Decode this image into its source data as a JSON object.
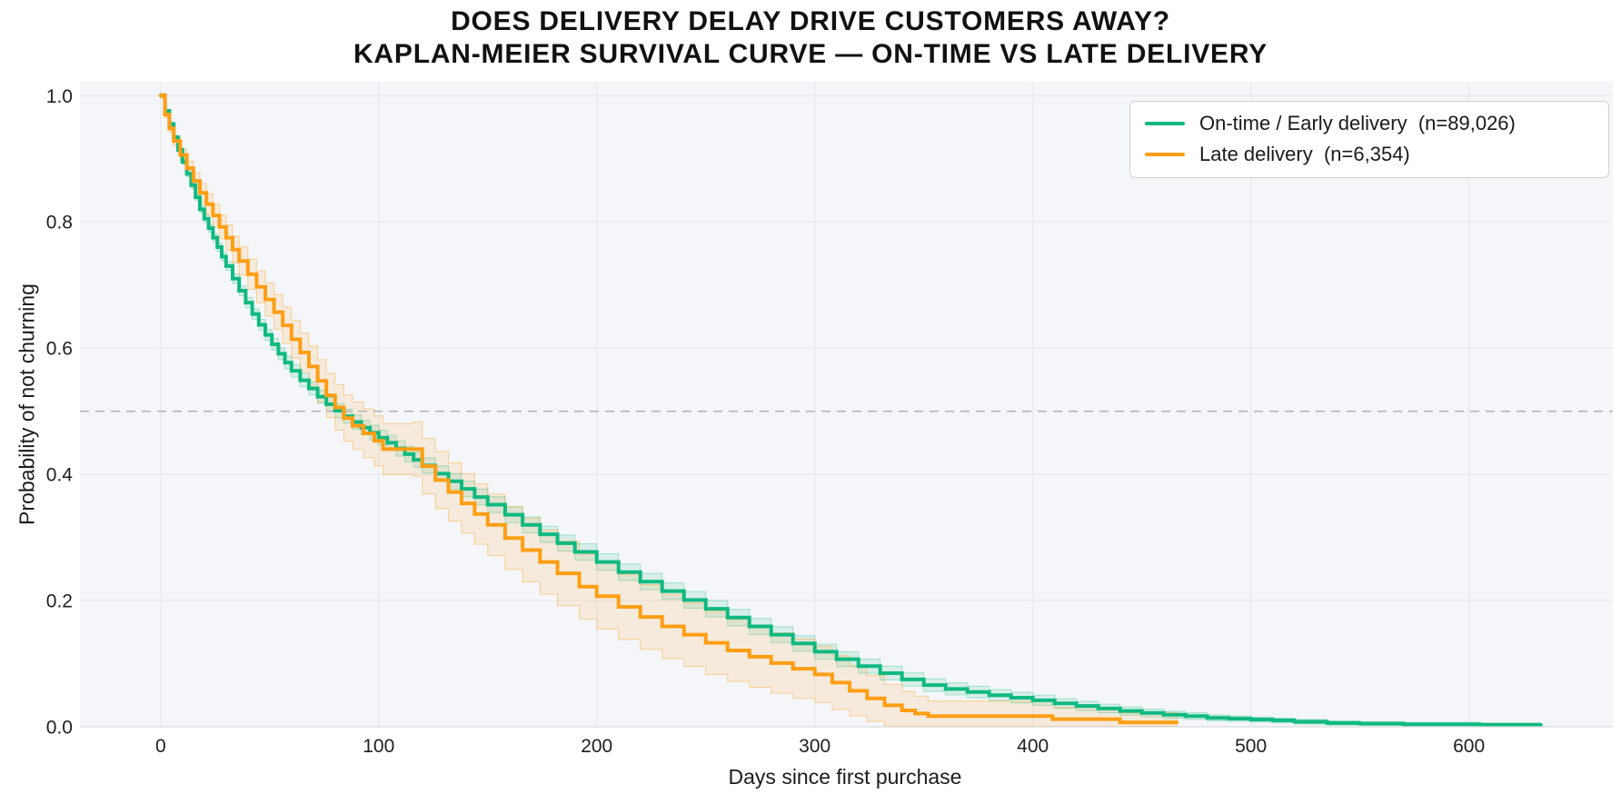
{
  "figure": {
    "title_line1": "DOES DELIVERY DELAY DRIVE CUSTOMERS AWAY?",
    "title_line2": "KAPLAN-MEIER SURVIVAL CURVE — ON-TIME VS LATE DELIVERY",
    "background": "#ffffff"
  },
  "axes": {
    "xlabel": "Days since first purchase",
    "ylabel": "Probability of not churning"
  },
  "legend": {
    "items": [
      {
        "label": "On-time / Early delivery  (n=89,026)",
        "color": "#10b981"
      },
      {
        "label": "Late delivery  (n=6,354)",
        "color": "#ff9e14"
      }
    ]
  },
  "chart_data": {
    "type": "line",
    "subtype": "kaplan-meier-step",
    "title": "DOES DELIVERY DELAY DRIVE CUSTOMERS AWAY? KAPLAN-MEIER SURVIVAL CURVE — ON-TIME VS LATE DELIVERY",
    "xlabel": "Days since first purchase",
    "ylabel": "Probability of not churning",
    "xlim": [
      -37,
      666
    ],
    "ylim": [
      0,
      1.022
    ],
    "x_ticks": [
      0,
      100,
      200,
      300,
      400,
      500,
      600
    ],
    "x_tick_labels": [
      "0",
      "100",
      "200",
      "300",
      "400",
      "500",
      "600"
    ],
    "y_ticks": [
      0.0,
      0.2,
      0.4,
      0.6,
      0.8,
      1.0
    ],
    "y_tick_labels": [
      "0.0",
      "0.2",
      "0.4",
      "0.6",
      "0.8",
      "1.0"
    ],
    "grid": true,
    "plot_background": "#f4f6f9",
    "grid_color": "#e8ebef",
    "spine_color": "#dcdfe3",
    "reference_line": {
      "y": 0.5,
      "color": "#b1b5ba",
      "dash": "10 7"
    },
    "legend_position": "top-right",
    "series": [
      {
        "name": "On-time / Early delivery  (n=89,026)",
        "color": "#10b981",
        "band_fill": "rgba(16,185,129,0.12)",
        "band_edge": "rgba(16,185,129,0.30)",
        "points": [
          [
            0,
            1.0
          ],
          [
            2,
            0.976
          ],
          [
            4,
            0.955
          ],
          [
            6,
            0.934
          ],
          [
            8,
            0.914
          ],
          [
            10,
            0.895
          ],
          [
            12,
            0.876
          ],
          [
            14,
            0.858
          ],
          [
            16,
            0.839
          ],
          [
            18,
            0.82
          ],
          [
            20,
            0.805
          ],
          [
            22,
            0.79
          ],
          [
            24,
            0.775
          ],
          [
            26,
            0.76
          ],
          [
            28,
            0.745
          ],
          [
            30,
            0.73
          ],
          [
            33,
            0.71
          ],
          [
            36,
            0.691
          ],
          [
            39,
            0.672
          ],
          [
            42,
            0.654
          ],
          [
            45,
            0.637
          ],
          [
            48,
            0.621
          ],
          [
            51,
            0.606
          ],
          [
            54,
            0.591
          ],
          [
            57,
            0.577
          ],
          [
            60,
            0.564
          ],
          [
            64,
            0.549
          ],
          [
            68,
            0.536
          ],
          [
            72,
            0.523
          ],
          [
            76,
            0.511
          ],
          [
            80,
            0.501
          ],
          [
            84,
            0.492
          ],
          [
            88,
            0.483
          ],
          [
            92,
            0.474
          ],
          [
            96,
            0.466
          ],
          [
            100,
            0.458
          ],
          [
            104,
            0.45
          ],
          [
            108,
            0.441
          ],
          [
            112,
            0.432
          ],
          [
            116,
            0.423
          ],
          [
            120,
            0.414
          ],
          [
            126,
            0.401
          ],
          [
            132,
            0.389
          ],
          [
            138,
            0.377
          ],
          [
            144,
            0.364
          ],
          [
            150,
            0.352
          ],
          [
            158,
            0.336
          ],
          [
            166,
            0.32
          ],
          [
            174,
            0.305
          ],
          [
            182,
            0.291
          ],
          [
            190,
            0.277
          ],
          [
            200,
            0.261
          ],
          [
            210,
            0.245
          ],
          [
            220,
            0.23
          ],
          [
            230,
            0.215
          ],
          [
            240,
            0.201
          ],
          [
            250,
            0.187
          ],
          [
            260,
            0.173
          ],
          [
            270,
            0.159
          ],
          [
            280,
            0.146
          ],
          [
            290,
            0.132
          ],
          [
            300,
            0.119
          ],
          [
            310,
            0.107
          ],
          [
            320,
            0.096
          ],
          [
            330,
            0.085
          ],
          [
            340,
            0.075
          ],
          [
            350,
            0.066
          ],
          [
            360,
            0.06
          ],
          [
            370,
            0.055
          ],
          [
            380,
            0.05
          ],
          [
            390,
            0.046
          ],
          [
            400,
            0.042
          ],
          [
            410,
            0.037
          ],
          [
            420,
            0.033
          ],
          [
            430,
            0.029
          ],
          [
            440,
            0.025
          ],
          [
            450,
            0.022
          ],
          [
            460,
            0.019
          ],
          [
            470,
            0.017
          ],
          [
            480,
            0.014
          ],
          [
            490,
            0.013
          ],
          [
            500,
            0.0115
          ],
          [
            510,
            0.01
          ],
          [
            520,
            0.008
          ],
          [
            535,
            0.006
          ],
          [
            550,
            0.005
          ],
          [
            570,
            0.004
          ],
          [
            590,
            0.004
          ],
          [
            605,
            0.003
          ],
          [
            620,
            0.003
          ],
          [
            633,
            0.003
          ]
        ],
        "ci_keypoints": [
          [
            0,
            0.002
          ],
          [
            10,
            0.004
          ],
          [
            20,
            0.006
          ],
          [
            40,
            0.008
          ],
          [
            60,
            0.01
          ],
          [
            100,
            0.012
          ],
          [
            200,
            0.013
          ],
          [
            260,
            0.013
          ],
          [
            300,
            0.012
          ],
          [
            350,
            0.01
          ],
          [
            400,
            0.008
          ],
          [
            450,
            0.006
          ],
          [
            500,
            0.004
          ],
          [
            550,
            0.003
          ],
          [
            633,
            0.003
          ]
        ]
      },
      {
        "name": "Late delivery  (n=6,354)",
        "color": "#ff9e14",
        "band_fill": "rgba(255,158,20,0.13)",
        "band_edge": "rgba(255,158,20,0.38)",
        "points": [
          [
            0,
            1.0
          ],
          [
            2,
            0.97
          ],
          [
            4,
            0.948
          ],
          [
            6,
            0.928
          ],
          [
            9,
            0.906
          ],
          [
            12,
            0.885
          ],
          [
            15,
            0.865
          ],
          [
            18,
            0.846
          ],
          [
            21,
            0.828
          ],
          [
            24,
            0.81
          ],
          [
            27,
            0.792
          ],
          [
            30,
            0.775
          ],
          [
            33,
            0.756
          ],
          [
            36,
            0.738
          ],
          [
            40,
            0.717
          ],
          [
            44,
            0.697
          ],
          [
            48,
            0.677
          ],
          [
            52,
            0.657
          ],
          [
            56,
            0.636
          ],
          [
            60,
            0.614
          ],
          [
            64,
            0.593
          ],
          [
            68,
            0.571
          ],
          [
            72,
            0.548
          ],
          [
            76,
            0.525
          ],
          [
            80,
            0.506
          ],
          [
            84,
            0.489
          ],
          [
            88,
            0.477
          ],
          [
            93,
            0.465
          ],
          [
            98,
            0.453
          ],
          [
            102,
            0.44
          ],
          [
            116,
            0.44
          ],
          [
            120,
            0.413
          ],
          [
            126,
            0.391
          ],
          [
            132,
            0.372
          ],
          [
            138,
            0.354
          ],
          [
            144,
            0.337
          ],
          [
            150,
            0.32
          ],
          [
            158,
            0.299
          ],
          [
            166,
            0.28
          ],
          [
            174,
            0.261
          ],
          [
            182,
            0.243
          ],
          [
            192,
            0.222
          ],
          [
            200,
            0.207
          ],
          [
            210,
            0.19
          ],
          [
            220,
            0.174
          ],
          [
            230,
            0.159
          ],
          [
            240,
            0.146
          ],
          [
            250,
            0.133
          ],
          [
            260,
            0.121
          ],
          [
            270,
            0.111
          ],
          [
            280,
            0.101
          ],
          [
            290,
            0.092
          ],
          [
            300,
            0.083
          ],
          [
            308,
            0.07
          ],
          [
            316,
            0.057
          ],
          [
            324,
            0.045
          ],
          [
            332,
            0.034
          ],
          [
            340,
            0.026
          ],
          [
            346,
            0.021
          ],
          [
            352,
            0.017
          ],
          [
            409,
            0.012
          ],
          [
            440,
            0.007
          ],
          [
            466,
            0.007
          ]
        ],
        "ci_keypoints": [
          [
            0,
            0.004
          ],
          [
            10,
            0.01
          ],
          [
            20,
            0.016
          ],
          [
            40,
            0.024
          ],
          [
            60,
            0.03
          ],
          [
            80,
            0.036
          ],
          [
            100,
            0.04
          ],
          [
            130,
            0.046
          ],
          [
            160,
            0.05
          ],
          [
            200,
            0.052
          ],
          [
            250,
            0.05
          ],
          [
            290,
            0.047
          ],
          [
            310,
            0.042
          ],
          [
            330,
            0.034
          ],
          [
            345,
            0.028
          ],
          [
            355,
            0.022
          ],
          [
            400,
            0.02
          ],
          [
            430,
            0.016
          ],
          [
            466,
            0.013
          ]
        ]
      }
    ]
  }
}
